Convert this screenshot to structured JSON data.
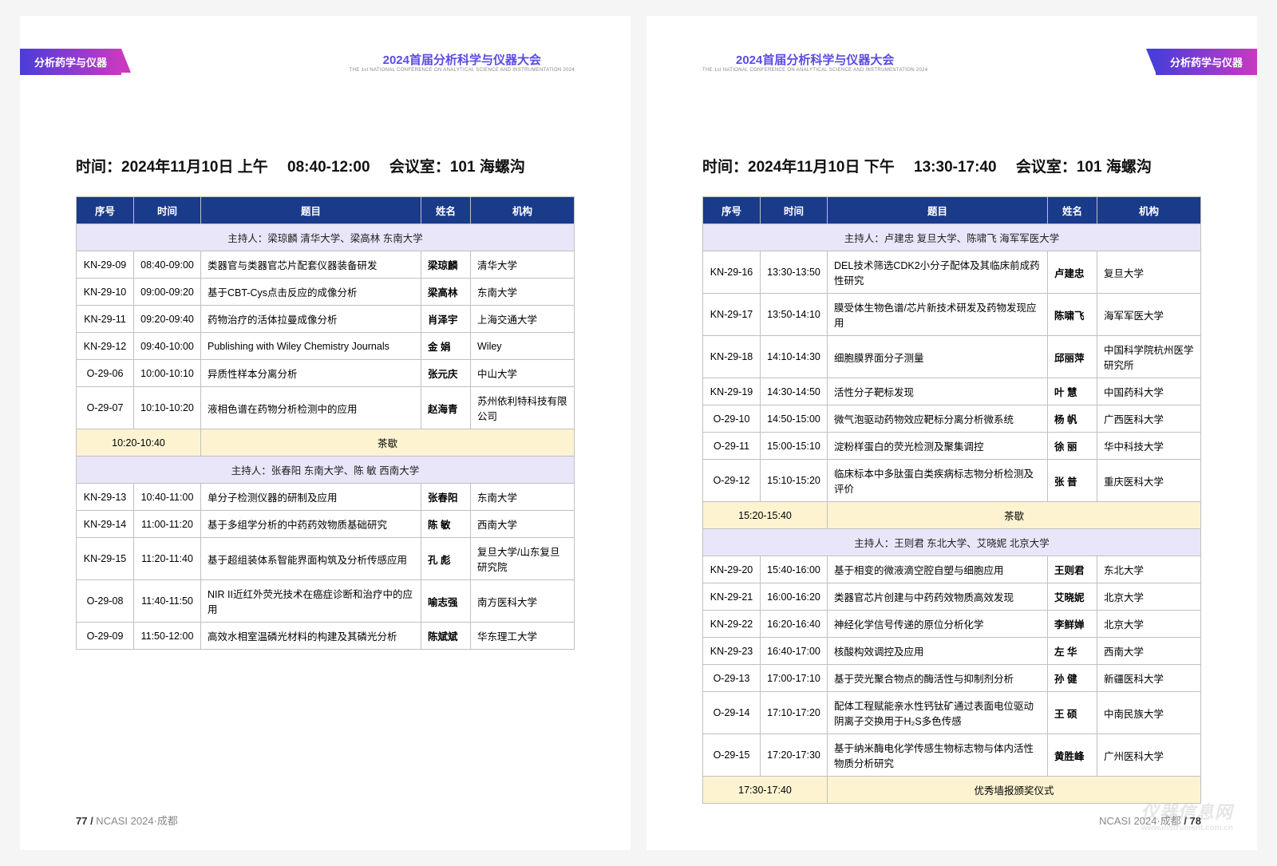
{
  "conference": {
    "title": "2024首届分析科学与仪器大会",
    "subtitle": "THE 1st NATIONAL CONFERENCE ON ANALYTICAL SCIENCE AND INSTRUMENTATION 2024"
  },
  "track_label": "分析药学与仪器",
  "left": {
    "session_header": "时间：2024年11月10日 上午  08:40-12:00  会议室：101 海螺沟",
    "cols": {
      "seq": "序号",
      "time": "时间",
      "topic": "题目",
      "name": "姓名",
      "org": "机构"
    },
    "chair1": "主持人：梁琼麟 清华大学、梁高林 东南大学",
    "rows1": [
      {
        "seq": "KN-29-09",
        "time": "08:40-09:00",
        "topic": "类器官与类器官芯片配套仪器装备研发",
        "name": "梁琼麟",
        "org": "清华大学"
      },
      {
        "seq": "KN-29-10",
        "time": "09:00-09:20",
        "topic": "基于CBT-Cys点击反应的成像分析",
        "name": "梁高林",
        "org": "东南大学"
      },
      {
        "seq": "KN-29-11",
        "time": "09:20-09:40",
        "topic": "药物治疗的活体拉曼成像分析",
        "name": "肖泽宇",
        "org": "上海交通大学"
      },
      {
        "seq": "KN-29-12",
        "time": "09:40-10:00",
        "topic": "Publishing with Wiley Chemistry Journals",
        "name": "金 娟",
        "org": "Wiley"
      },
      {
        "seq": "O-29-06",
        "time": "10:00-10:10",
        "topic": "异质性样本分离分析",
        "name": "张元庆",
        "org": "中山大学"
      },
      {
        "seq": "O-29-07",
        "time": "10:10-10:20",
        "topic": "液相色谱在药物分析检测中的应用",
        "name": "赵海青",
        "org": "苏州依利特科技有限公司"
      }
    ],
    "break1": {
      "time": "10:20-10:40",
      "label": "茶歇"
    },
    "chair2": "主持人：张春阳 东南大学、陈 敏 西南大学",
    "rows2": [
      {
        "seq": "KN-29-13",
        "time": "10:40-11:00",
        "topic": "单分子检测仪器的研制及应用",
        "name": "张春阳",
        "org": "东南大学"
      },
      {
        "seq": "KN-29-14",
        "time": "11:00-11:20",
        "topic": "基于多组学分析的中药药效物质基础研究",
        "name": "陈 敏",
        "org": "西南大学"
      },
      {
        "seq": "KN-29-15",
        "time": "11:20-11:40",
        "topic": "基于超组装体系智能界面构筑及分析传感应用",
        "name": "孔 彪",
        "org": "复旦大学/山东复旦研究院"
      },
      {
        "seq": "O-29-08",
        "time": "11:40-11:50",
        "topic": "NIR II近红外荧光技术在癌症诊断和治疗中的应用",
        "name": "喻志强",
        "org": "南方医科大学"
      },
      {
        "seq": "O-29-09",
        "time": "11:50-12:00",
        "topic": "高效水相室温磷光材料的构建及其磷光分析",
        "name": "陈斌斌",
        "org": "华东理工大学"
      }
    ],
    "footer": {
      "num": "77 /",
      "text": " NCASI 2024·成都"
    }
  },
  "right": {
    "session_header": "时间：2024年11月10日 下午  13:30-17:40  会议室：101 海螺沟",
    "cols": {
      "seq": "序号",
      "time": "时间",
      "topic": "题目",
      "name": "姓名",
      "org": "机构"
    },
    "chair1": "主持人：卢建忠 复旦大学、陈啸飞 海军军医大学",
    "rows1": [
      {
        "seq": "KN-29-16",
        "time": "13:30-13:50",
        "topic": "DEL技术筛选CDK2小分子配体及其临床前成药性研究",
        "name": "卢建忠",
        "org": "复旦大学"
      },
      {
        "seq": "KN-29-17",
        "time": "13:50-14:10",
        "topic": "膜受体生物色谱/芯片新技术研发及药物发现应用",
        "name": "陈啸飞",
        "org": "海军军医大学"
      },
      {
        "seq": "KN-29-18",
        "time": "14:10-14:30",
        "topic": "细胞膜界面分子测量",
        "name": "邱丽萍",
        "org": "中国科学院杭州医学研究所"
      },
      {
        "seq": "KN-29-19",
        "time": "14:30-14:50",
        "topic": "活性分子靶标发现",
        "name": "叶 慧",
        "org": "中国药科大学"
      },
      {
        "seq": "O-29-10",
        "time": "14:50-15:00",
        "topic": "微气泡驱动药物效应靶标分离分析微系统",
        "name": "杨 帆",
        "org": "广西医科大学"
      },
      {
        "seq": "O-29-11",
        "time": "15:00-15:10",
        "topic": "淀粉样蛋白的荧光检测及聚集调控",
        "name": "徐 丽",
        "org": "华中科技大学"
      },
      {
        "seq": "O-29-12",
        "time": "15:10-15:20",
        "topic": "临床标本中多肽蛋白类疾病标志物分析检测及评价",
        "name": "张 普",
        "org": "重庆医科大学"
      }
    ],
    "break1": {
      "time": "15:20-15:40",
      "label": "茶歇"
    },
    "chair2": "主持人：王则君 东北大学、艾晓妮 北京大学",
    "rows2": [
      {
        "seq": "KN-29-20",
        "time": "15:40-16:00",
        "topic": "基于相变的微液滴空腔自塑与细胞应用",
        "name": "王则君",
        "org": "东北大学"
      },
      {
        "seq": "KN-29-21",
        "time": "16:00-16:20",
        "topic": "类器官芯片创建与中药药效物质高效发现",
        "name": "艾晓妮",
        "org": "北京大学"
      },
      {
        "seq": "KN-29-22",
        "time": "16:20-16:40",
        "topic": "神经化学信号传递的原位分析化学",
        "name": "李鲜婵",
        "org": "北京大学"
      },
      {
        "seq": "KN-29-23",
        "time": "16:40-17:00",
        "topic": "核酸构效调控及应用",
        "name": "左 华",
        "org": "西南大学"
      },
      {
        "seq": "O-29-13",
        "time": "17:00-17:10",
        "topic": "基于荧光聚合物点的酶活性与抑制剂分析",
        "name": "孙 健",
        "org": "新疆医科大学"
      },
      {
        "seq": "O-29-14",
        "time": "17:10-17:20",
        "topic": "配体工程赋能亲水性钙钛矿通过表面电位驱动阴离子交换用于H₂S多色传感",
        "name": "王 硕",
        "org": "中南民族大学"
      },
      {
        "seq": "O-29-15",
        "time": "17:20-17:30",
        "topic": "基于纳米酶电化学传感生物标志物与体内活性物质分析研究",
        "name": "黄胜峰",
        "org": "广州医科大学"
      }
    ],
    "break2": {
      "time": "17:30-17:40",
      "label": "优秀墙报颁奖仪式"
    },
    "footer": {
      "text": "NCASI 2024·成都 ",
      "num": "/ 78"
    },
    "watermark": {
      "main": "仪器信息网",
      "sub": "www.instrument.com.cn"
    }
  }
}
